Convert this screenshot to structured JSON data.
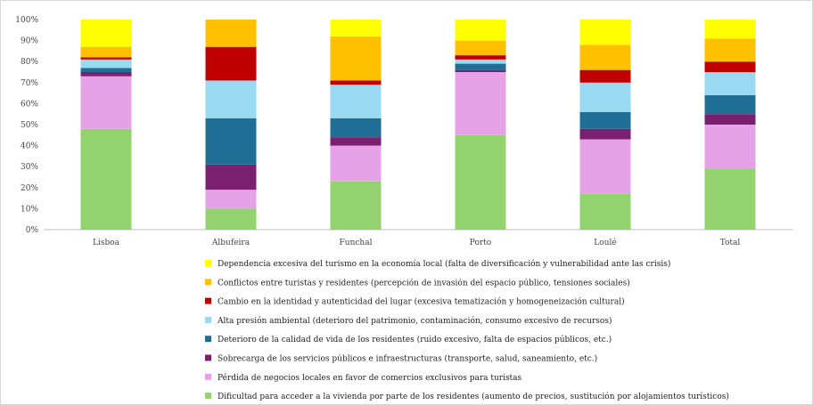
{
  "chart_data": {
    "type": "bar",
    "stacked": true,
    "categories": [
      "Lisboa",
      "Albufeira",
      "Funchal",
      "Porto",
      "Loulé",
      "Total"
    ],
    "y_ticks": [
      "0%",
      "10%",
      "20%",
      "30%",
      "40%",
      "50%",
      "60%",
      "70%",
      "80%",
      "90%",
      "100%"
    ],
    "ylim": [
      0,
      100
    ],
    "grid": false,
    "legend_position": "bottom",
    "series": [
      {
        "name": "Dificultad para acceder a la vivienda por parte de los residentes (aumento de precios, sustitución por alojamientos turísticos)",
        "color": "#92d36e",
        "values": [
          48,
          10,
          23,
          45,
          17,
          29
        ]
      },
      {
        "name": "Pérdida de negocios locales en favor de comercios exclusivos para turistas",
        "color": "#e6a2e6",
        "values": [
          25,
          9,
          17,
          30,
          26,
          21
        ]
      },
      {
        "name": "Sobrecarga de los servicios públicos e infraestructuras (transporte, salud, saneamiento, etc.)",
        "color": "#7b2070",
        "values": [
          2,
          12,
          4,
          1,
          5,
          5
        ]
      },
      {
        "name": "Deterioro de la calidad de vida de los residentes (ruido excesivo, falta de espacios públicos, etc.)",
        "color": "#1f6e95",
        "values": [
          2,
          22,
          9,
          3,
          8,
          9
        ]
      },
      {
        "name": "Alta presión ambiental (deterioro del patrimonio, contaminación, consumo excesivo de recursos)",
        "color": "#9ad9f2",
        "values": [
          4,
          18,
          16,
          2,
          14,
          11
        ]
      },
      {
        "name": "Cambio en la identidad y autenticidad del lugar (excesiva tematización y homogeneización cultural)",
        "color": "#c00000",
        "values": [
          1,
          16,
          2,
          2,
          6,
          5
        ]
      },
      {
        "name": "Conflictos entre turistas y residentes (percepción de invasión del espacio público, tensiones sociales)",
        "color": "#ffc000",
        "values": [
          5,
          13,
          21,
          7,
          12,
          11
        ]
      },
      {
        "name": "Dependencia excesiva del turismo en la economía local (falta de diversificación y vulnerabilidad ante las crisis)",
        "color": "#ffff00",
        "values": [
          13,
          0,
          8,
          10,
          12,
          9
        ]
      }
    ]
  }
}
